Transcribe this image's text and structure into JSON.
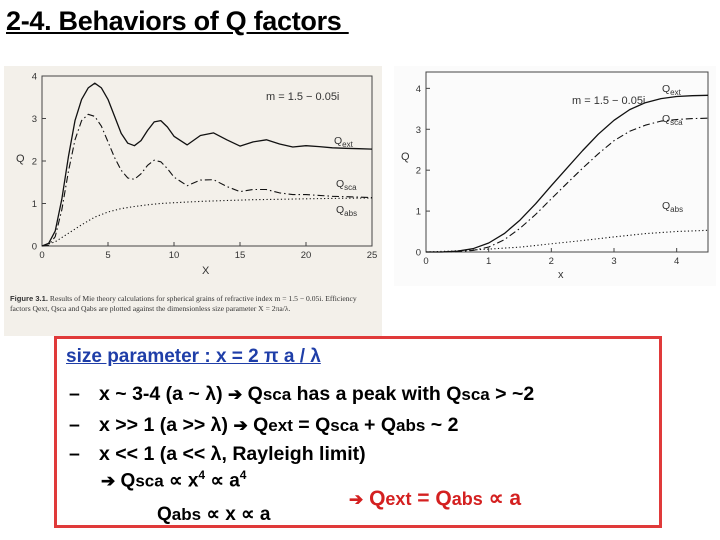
{
  "slide": {
    "title": "2-4. Behaviors of Q factors "
  },
  "left_plot": {
    "annotation": "m = 1.5 − 0.05i",
    "ylabel": "Q",
    "xlabel": "X",
    "xticks": [
      "0",
      "5",
      "10",
      "15",
      "20",
      "25"
    ],
    "yticks": [
      "0",
      "1",
      "2",
      "3",
      "4"
    ],
    "labels": {
      "ext": "Q",
      "ext_sub": "ext",
      "sca": "Q",
      "sca_sub": "sca",
      "abs": "Q",
      "abs_sub": "abs"
    },
    "caption": {
      "prefix": "Figure 3.1.",
      "text": " Results of Mie theory calculations for spherical grains of refractive index m = 1.5 − 0.05i. Efficiency factors Qext, Qsca and Qabs are plotted against the dimensionless size parameter X = 2πa/λ."
    }
  },
  "right_plot": {
    "annotation": "m = 1.5 − 0.05i",
    "ylabel": "Q",
    "xlabel": "x",
    "xticks": [
      "0",
      "1",
      "2",
      "3",
      "4"
    ],
    "yticks": [
      "0",
      "1",
      "2",
      "3",
      "4"
    ],
    "labels": {
      "ext": "Q",
      "ext_sub": "ext",
      "sca": "Q",
      "sca_sub": "sca",
      "abs": "Q",
      "abs_sub": "abs"
    }
  },
  "summary": {
    "size_param": "size parameter : x = 2 π a / λ",
    "b1": {
      "dash": "–",
      "pre": "x ~ 3-4 (a ~ λ) ",
      "arrow": "➔",
      "q1": "Q",
      "q1s": "sca",
      "mid": " has a peak with ",
      "q2": "Q",
      "q2s": "sca",
      "post": " > ~2"
    },
    "b2": {
      "dash": "–",
      "pre": "x >> 1  (a >> λ) ",
      "arrow": "➔",
      "q1": "Q",
      "q1s": "ext",
      "eq": " = ",
      "q2": "Q",
      "q2s": "sca",
      "plus": " + ",
      "q3": "Q",
      "q3s": "abs",
      "post": " ~ 2"
    },
    "b3": {
      "dash": "–",
      "text": "x << 1  (a << λ, Rayleigh limit)"
    },
    "p1": {
      "arrow": "➔",
      "q": " Q",
      "qs": "sca",
      "rel": " ∝ x",
      "e1": "4",
      "rel2": " ∝ a",
      "e2": "4"
    },
    "p2": {
      "q": "Q",
      "qs": "abs",
      "rel": " ∝ x ∝ a"
    },
    "res": {
      "arrow": "➔",
      "q1": " Q",
      "q1s": "ext",
      "eq": " = ",
      "q2": "Q",
      "q2s": "abs",
      "rel": " ∝ a"
    }
  },
  "chart_data": [
    {
      "type": "line",
      "xlabel": "X",
      "ylabel": "Q",
      "xlim": [
        0,
        25
      ],
      "ylim": [
        0,
        4
      ],
      "annotation": "m = 1.5 − 0.05i",
      "series": [
        {
          "name": "Qext",
          "style": "solid",
          "x": [
            0,
            0.5,
            1,
            1.5,
            2,
            2.5,
            3,
            3.5,
            4,
            4.5,
            5,
            5.5,
            6,
            6.5,
            7,
            7.5,
            8,
            8.5,
            9,
            9.5,
            10,
            11,
            12,
            13,
            14,
            15,
            16,
            17,
            18,
            19,
            20,
            21,
            22,
            23,
            24,
            25
          ],
          "y": [
            0,
            0.06,
            0.35,
            1.1,
            2.1,
            2.95,
            3.45,
            3.72,
            3.83,
            3.72,
            3.45,
            3.05,
            2.65,
            2.42,
            2.36,
            2.48,
            2.72,
            2.92,
            2.95,
            2.8,
            2.58,
            2.38,
            2.6,
            2.66,
            2.5,
            2.35,
            2.45,
            2.5,
            2.4,
            2.33,
            2.36,
            2.34,
            2.31,
            2.3,
            2.29,
            2.28
          ]
        },
        {
          "name": "Qsca",
          "style": "dash-dot",
          "x": [
            0,
            0.5,
            1,
            1.5,
            2,
            2.5,
            3,
            3.5,
            4,
            4.5,
            5,
            5.5,
            6,
            6.5,
            7,
            7.5,
            8,
            8.5,
            9,
            9.5,
            10,
            11,
            12,
            13,
            14,
            15,
            16,
            17,
            18,
            19,
            20,
            21,
            22,
            23,
            24,
            25
          ],
          "y": [
            0,
            0.02,
            0.22,
            0.85,
            1.75,
            2.5,
            2.95,
            3.1,
            3.05,
            2.82,
            2.45,
            2.08,
            1.78,
            1.6,
            1.57,
            1.7,
            1.9,
            2.02,
            1.98,
            1.82,
            1.62,
            1.42,
            1.55,
            1.56,
            1.4,
            1.28,
            1.33,
            1.33,
            1.25,
            1.21,
            1.21,
            1.19,
            1.17,
            1.16,
            1.15,
            1.14
          ]
        },
        {
          "name": "Qabs",
          "style": "dotted",
          "x": [
            0,
            1,
            2,
            3,
            4,
            5,
            6,
            7,
            8,
            9,
            10,
            12,
            14,
            16,
            18,
            20,
            22,
            25
          ],
          "y": [
            0,
            0.1,
            0.3,
            0.5,
            0.68,
            0.8,
            0.88,
            0.93,
            0.97,
            1.0,
            1.02,
            1.05,
            1.07,
            1.09,
            1.1,
            1.11,
            1.12,
            1.13
          ]
        }
      ]
    },
    {
      "type": "line",
      "xlabel": "x",
      "ylabel": "Q",
      "xlim": [
        0,
        4.5
      ],
      "ylim": [
        0,
        4.4
      ],
      "annotation": "m = 1.5 − 0.05i",
      "series": [
        {
          "name": "Qext",
          "style": "solid",
          "x": [
            0,
            0.25,
            0.5,
            0.75,
            1,
            1.25,
            1.5,
            1.75,
            2,
            2.25,
            2.5,
            2.75,
            3,
            3.25,
            3.5,
            3.75,
            4,
            4.25,
            4.5
          ],
          "y": [
            0,
            0.0,
            0.02,
            0.08,
            0.22,
            0.45,
            0.78,
            1.18,
            1.62,
            2.05,
            2.48,
            2.88,
            3.22,
            3.48,
            3.65,
            3.75,
            3.8,
            3.82,
            3.83
          ]
        },
        {
          "name": "Qsca",
          "style": "dash-dot",
          "x": [
            0,
            0.25,
            0.5,
            0.75,
            1,
            1.25,
            1.5,
            1.75,
            2,
            2.25,
            2.5,
            2.75,
            3,
            3.25,
            3.5,
            3.75,
            4,
            4.25,
            4.5
          ],
          "y": [
            0,
            0.0,
            0.01,
            0.04,
            0.12,
            0.3,
            0.58,
            0.92,
            1.3,
            1.68,
            2.05,
            2.4,
            2.72,
            2.95,
            3.1,
            3.2,
            3.24,
            3.26,
            3.27
          ]
        },
        {
          "name": "Qabs",
          "style": "dotted",
          "x": [
            0,
            0.5,
            1,
            1.5,
            2,
            2.5,
            3,
            3.5,
            4,
            4.5
          ],
          "y": [
            0,
            0.03,
            0.07,
            0.12,
            0.2,
            0.28,
            0.37,
            0.45,
            0.5,
            0.53
          ]
        }
      ]
    }
  ]
}
